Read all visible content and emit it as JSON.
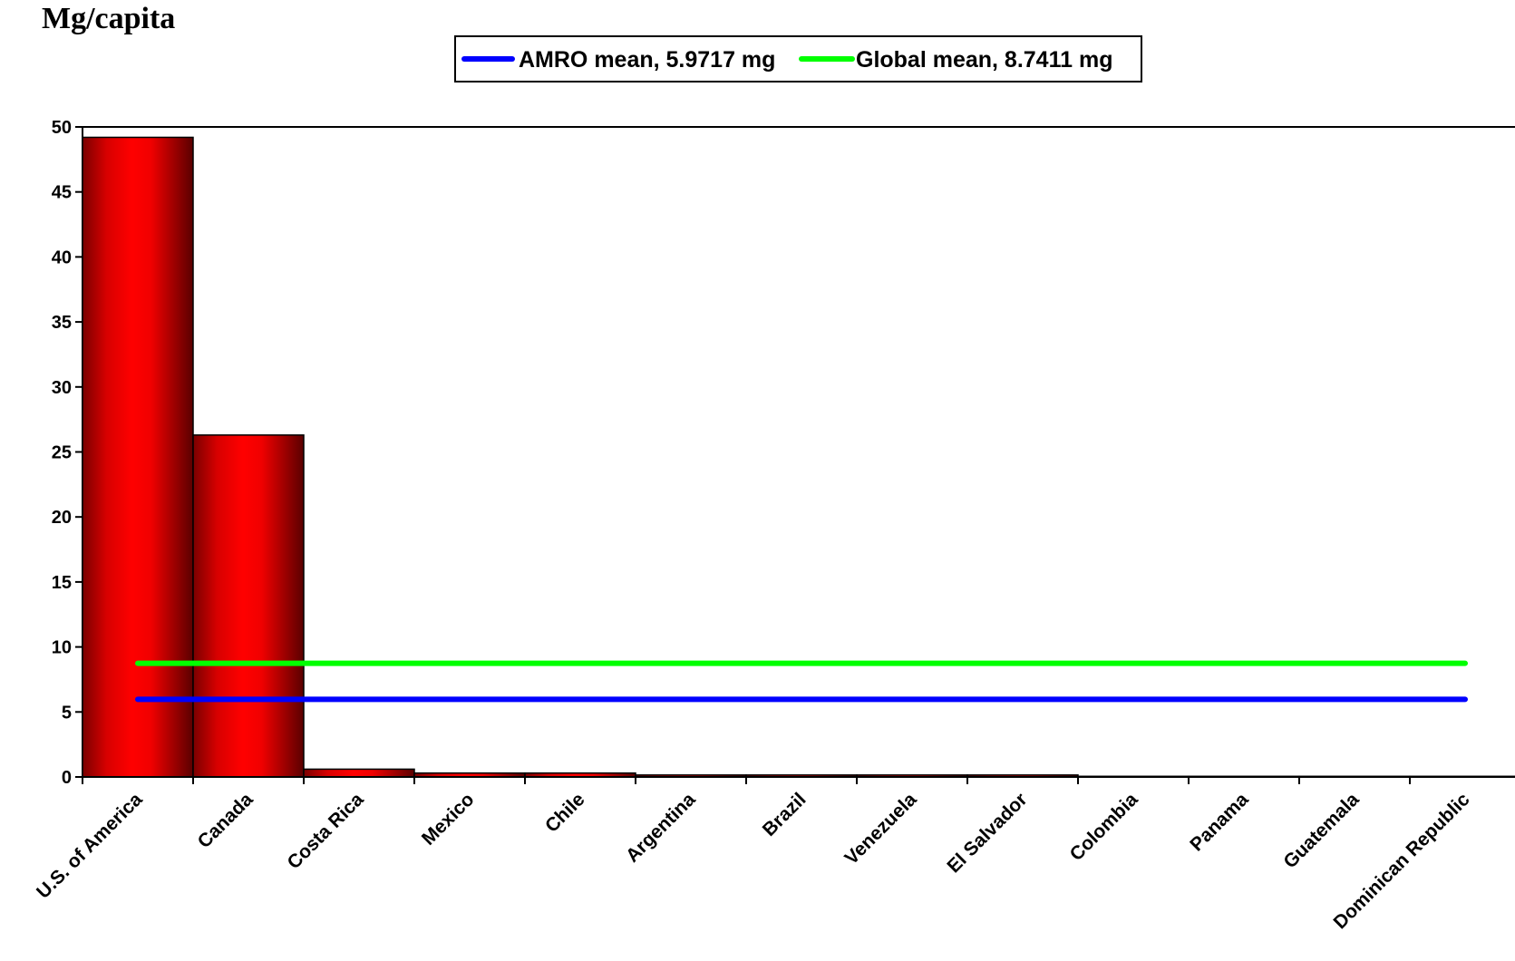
{
  "chart_data": {
    "type": "bar",
    "ylabel": "Mg/capita",
    "ylim": [
      0,
      50
    ],
    "yticks": [
      0,
      5,
      10,
      15,
      20,
      25,
      30,
      35,
      40,
      45,
      50
    ],
    "categories": [
      "U.S. of America",
      "Canada",
      "Costa Rica",
      "Mexico",
      "Chile",
      "Argentina",
      "Brazil",
      "Venezuela",
      "El Salvador",
      "Colombia",
      "Panama",
      "Guatemala",
      "Dominican Republic"
    ],
    "series": [
      {
        "type": "bar",
        "values": [
          49.2,
          26.3,
          0.6,
          0.3,
          0.3,
          0.15,
          0.15,
          0.15,
          0.15,
          0.05,
          0.05,
          0.05,
          0.05
        ],
        "color": "#ff0000"
      }
    ],
    "lines": [
      {
        "name": "AMRO mean, 5.9717 mg",
        "value": 5.9717,
        "color": "#0000ff"
      },
      {
        "name": "Global mean, 8.7411 mg",
        "value": 8.7411,
        "color": "#00ff00"
      }
    ],
    "legend_position": "top-center",
    "grid": false
  }
}
